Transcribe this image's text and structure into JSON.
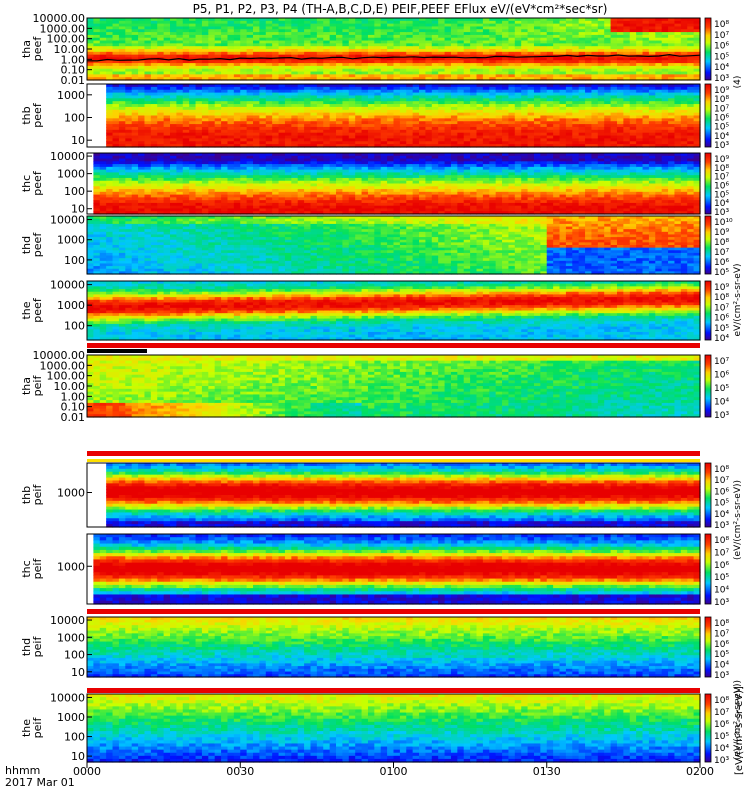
{
  "title": "P5, P1, P2, P3, P4 (TH-A,B,C,D,E) PEIF,PEEF EFlux eV/(eV*cm²*sec*sr)",
  "colorbar_unit": "[eV/(cm²-s-sr-eV)]",
  "colorbar_extra_labels": [
    "(4)",
    "eV/(cm²-s-sr-eV)",
    "(eV/(cm²-s-sr-eV))",
    "(eV/(cm²-s-sr-eV))"
  ],
  "x_axis": {
    "row_label_1": "hhmm",
    "row_label_2": "2017 Mar 01",
    "tick_labels": [
      "0000",
      "0030",
      "0100",
      "0130",
      "0200"
    ]
  },
  "chart_data": {
    "type": "heatmap",
    "x_range": [
      "0000",
      "0200"
    ],
    "x_ticks": [
      "0000",
      "0030",
      "0100",
      "0130",
      "0200"
    ],
    "y_scale": "log",
    "colormap": "rainbow (purple-blue-cyan-green-yellow-red)",
    "panels": [
      {
        "id": "tha-peef",
        "label": [
          "tha",
          "peef"
        ],
        "ylim": [
          0.01,
          10000
        ],
        "ytick_labels": [
          "10000.00",
          "1000.00",
          "100.00",
          "10.00",
          "1.00",
          "0.10",
          "0.01"
        ],
        "colorbar_labels": [
          "10⁸",
          "10⁷",
          "10⁶",
          "10⁵",
          "10⁴",
          "10³"
        ],
        "overlay": "black line near 1.00"
      },
      {
        "id": "thb-peef",
        "label": [
          "thb",
          "peef"
        ],
        "ylim": [
          5,
          3000
        ],
        "ytick_labels": [
          "1000",
          "100",
          "10"
        ],
        "colorbar_labels": [
          "10⁹",
          "10⁸",
          "10⁷",
          "10⁶",
          "10⁵",
          "10⁴",
          "10³"
        ]
      },
      {
        "id": "thc-peef",
        "label": [
          "thc",
          "peef"
        ],
        "ylim": [
          5,
          15000
        ],
        "ytick_labels": [
          "10000",
          "1000",
          "100",
          "10"
        ],
        "colorbar_labels": [
          "10⁹",
          "10⁸",
          "10⁷",
          "10⁶",
          "10⁵",
          "10⁴",
          "10³"
        ]
      },
      {
        "id": "thd-peef",
        "label": [
          "thd",
          "peef"
        ],
        "ylim": [
          20,
          15000
        ],
        "ytick_labels": [
          "10000",
          "1000",
          "100"
        ],
        "colorbar_labels": [
          "10¹⁰",
          "10⁹",
          "10⁸",
          "10⁷",
          "10⁶",
          "10⁵"
        ]
      },
      {
        "id": "the-peef",
        "label": [
          "the",
          "peef"
        ],
        "ylim": [
          20,
          15000
        ],
        "ytick_labels": [
          "10000",
          "1000",
          "100"
        ],
        "colorbar_labels": [
          "10⁹",
          "10⁸",
          "10⁷",
          "10⁶",
          "10⁵",
          "10⁴"
        ]
      },
      {
        "id": "tha-peif",
        "label": [
          "tha",
          "peif"
        ],
        "ylim": [
          0.01,
          10000
        ],
        "ytick_labels": [
          "10000.00",
          "1000.00",
          "100.00",
          "10.00",
          "1.00",
          "0.10",
          "0.01"
        ],
        "colorbar_labels": [
          "10⁷",
          "10⁶",
          "10⁵",
          "10⁴",
          "10³"
        ]
      },
      {
        "id": "thb-peif",
        "label": [
          "thb",
          "peif"
        ],
        "ylim": [
          30,
          20000
        ],
        "ytick_labels": [
          "1000"
        ],
        "colorbar_labels": [
          "10⁸",
          "10⁷",
          "10⁶",
          "10⁵",
          "10⁴",
          "10³"
        ]
      },
      {
        "id": "thc-peif",
        "label": [
          "thc",
          "peif"
        ],
        "ylim": [
          30,
          20000
        ],
        "ytick_labels": [
          "1000"
        ],
        "colorbar_labels": [
          "10⁸",
          "10⁷",
          "10⁶",
          "10⁵",
          "10⁴",
          "10³"
        ]
      },
      {
        "id": "thd-peif",
        "label": [
          "thd",
          "peif"
        ],
        "ylim": [
          5,
          15000
        ],
        "ytick_labels": [
          "10000",
          "1000",
          "100",
          "10"
        ],
        "colorbar_labels": [
          "10⁸",
          "10⁷",
          "10⁶",
          "10⁵",
          "10⁴",
          "10³"
        ]
      },
      {
        "id": "the-peif",
        "label": [
          "the",
          "peif"
        ],
        "ylim": [
          5,
          15000
        ],
        "ytick_labels": [
          "10000",
          "1000",
          "100",
          "10"
        ],
        "colorbar_labels": [
          "10⁸",
          "10⁷",
          "10⁶",
          "10⁵",
          "10⁴",
          "10³"
        ]
      }
    ]
  }
}
